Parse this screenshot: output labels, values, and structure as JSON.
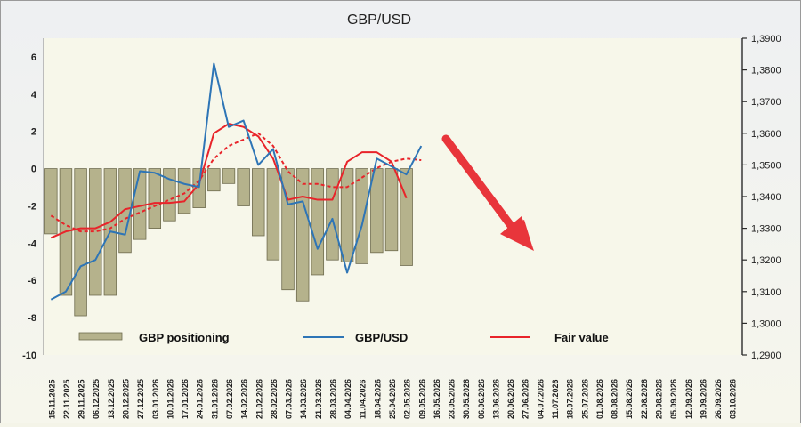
{
  "chart_data": {
    "type": "bar",
    "title": "GBP/USD",
    "legend": {
      "placement": "bottom-left",
      "items": [
        {
          "label": "GBP positioning",
          "kind": "bar",
          "color": "#b5b28c"
        },
        {
          "label": "GBP/USD",
          "kind": "line",
          "color": "#2e75b6"
        },
        {
          "label": "Fair value",
          "kind": "line",
          "color": "#e8242a"
        }
      ]
    },
    "colors": {
      "positioning": "#b5b28c",
      "gbpusd": "#2e75b6",
      "fair_value": "#e8242a",
      "fair_value_dashed": "#e8242a",
      "arrow": "#e8353b"
    },
    "y_left": {
      "min": -10,
      "max": 7,
      "ticks": [
        "6",
        "4",
        "2",
        "0",
        "-2",
        "-4",
        "-6",
        "-8",
        "-10"
      ],
      "tick_values": [
        6,
        4,
        2,
        0,
        -2,
        -4,
        -6,
        -8,
        -10
      ]
    },
    "y_right": {
      "min": 1.29,
      "max": 1.39,
      "ticks": [
        "1,2900",
        "1,3000",
        "1,3100",
        "1,3200",
        "1,3300",
        "1,3400",
        "1,3500",
        "1,3600",
        "1,3700",
        "1,3800",
        "1,3900"
      ],
      "tick_values": [
        1.29,
        1.3,
        1.31,
        1.32,
        1.33,
        1.34,
        1.35,
        1.36,
        1.37,
        1.38,
        1.39
      ]
    },
    "x_dates": [
      "15.11.2025",
      "22.11.2025",
      "29.11.2025",
      "06.12.2025",
      "13.12.2025",
      "20.12.2025",
      "27.12.2025",
      "03.01.2026",
      "10.01.2026",
      "17.01.2026",
      "24.01.2026",
      "31.01.2026",
      "07.02.2026",
      "14.02.2026",
      "21.02.2026",
      "28.02.2026",
      "07.03.2026",
      "14.03.2026",
      "21.03.2026",
      "28.03.2026",
      "04.04.2026",
      "11.04.2026",
      "18.04.2026",
      "25.04.2026",
      "02.05.2026",
      "09.05.2026",
      "16.05.2026",
      "23.05.2026",
      "30.05.2026",
      "06.06.2026",
      "13.06.2026",
      "20.06.2026",
      "27.06.2026",
      "04.07.2026",
      "11.07.2026",
      "18.07.2026",
      "25.07.2026",
      "01.08.2026",
      "08.08.2026",
      "15.08.2026",
      "22.08.2026",
      "29.08.2026",
      "05.09.2026",
      "12.09.2026",
      "19.09.2026",
      "26.09.2026",
      "03.10.2026"
    ],
    "positioning": [
      -3.5,
      -6.8,
      -7.9,
      -6.8,
      -6.8,
      -4.5,
      -3.8,
      -3.2,
      -2.8,
      -2.4,
      -2.1,
      -1.2,
      -0.8,
      -2.0,
      -3.6,
      -4.9,
      -6.5,
      -7.1,
      -5.7,
      -4.9,
      -5.0,
      -5.1,
      -4.5,
      -4.4,
      -5.2
    ],
    "gbpusd": [
      1.3075,
      1.31,
      1.318,
      1.32,
      1.329,
      1.328,
      1.348,
      1.3475,
      1.3455,
      1.344,
      1.343,
      1.382,
      1.362,
      1.364,
      1.35,
      1.355,
      1.3375,
      1.3385,
      1.3235,
      1.333,
      1.316,
      1.331,
      1.352,
      1.3495,
      1.347,
      1.356
    ],
    "fair_value": [
      1.327,
      1.329,
      1.33,
      1.33,
      1.332,
      1.336,
      1.337,
      1.338,
      1.338,
      1.3385,
      1.344,
      1.36,
      1.363,
      1.362,
      1.359,
      1.352,
      1.339,
      1.34,
      1.339,
      1.339,
      1.351,
      1.354,
      1.354,
      1.351,
      1.3395
    ],
    "fair_value_dashed": [
      1.334,
      1.331,
      1.329,
      1.329,
      1.33,
      1.333,
      1.335,
      1.337,
      1.339,
      1.341,
      1.345,
      1.352,
      1.356,
      1.358,
      1.36,
      1.356,
      1.348,
      1.344,
      1.344,
      1.343,
      1.343,
      1.346,
      1.349,
      1.351,
      1.352,
      1.3515
    ]
  }
}
